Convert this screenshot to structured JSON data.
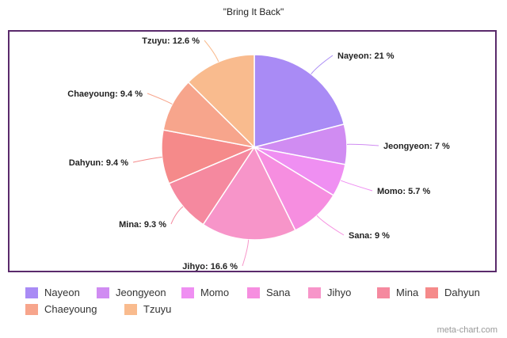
{
  "chart_data": {
    "type": "pie",
    "title": "\"Bring It Back\"",
    "slices": [
      {
        "label": "Nayeon",
        "value": 21,
        "display": "Nayeon: 21 %",
        "color": "#a98bf5"
      },
      {
        "label": "Jeongyeon",
        "value": 7,
        "display": "Jeongyeon: 7 %",
        "color": "#d08cf2"
      },
      {
        "label": "Momo",
        "value": 5.7,
        "display": "Momo: 5.7 %",
        "color": "#ef8ff2"
      },
      {
        "label": "Sana",
        "value": 9,
        "display": "Sana: 9 %",
        "color": "#f68ee0"
      },
      {
        "label": "Jihyo",
        "value": 16.6,
        "display": "Jihyo: 16.6 %",
        "color": "#f795c9"
      },
      {
        "label": "Mina",
        "value": 9.3,
        "display": "Mina: 9.3 %",
        "color": "#f5899f"
      },
      {
        "label": "Dahyun",
        "value": 9.4,
        "display": "Dahyun: 9.4 %",
        "color": "#f58a8a"
      },
      {
        "label": "Chaeyoung",
        "value": 9.4,
        "display": "Chaeyoung: 9.4 %",
        "color": "#f7a58c"
      },
      {
        "label": "Tzuyu",
        "value": 12.6,
        "display": "Tzuyu: 12.6 %",
        "color": "#f9bb8e"
      }
    ],
    "legend_position": "bottom"
  },
  "watermark": "meta-chart.com"
}
